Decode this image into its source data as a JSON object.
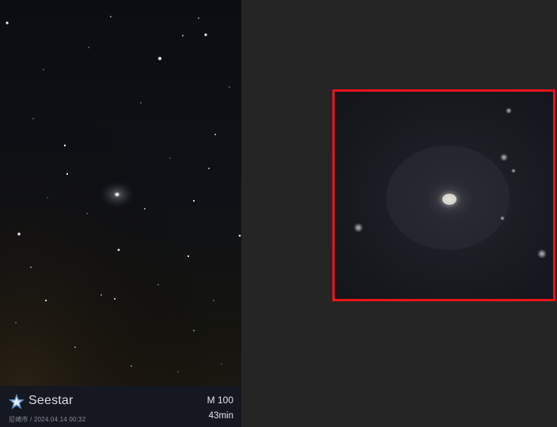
{
  "caption": {
    "brand": "Seestar",
    "location_datetime": "尼崎市 / 2024.04.14 00:32",
    "target": "M 100",
    "exposure": "43min"
  },
  "icons": {
    "logo": "seestar-logo-icon"
  },
  "colors": {
    "highlight_frame": "#e8141b",
    "background": "#252525"
  }
}
